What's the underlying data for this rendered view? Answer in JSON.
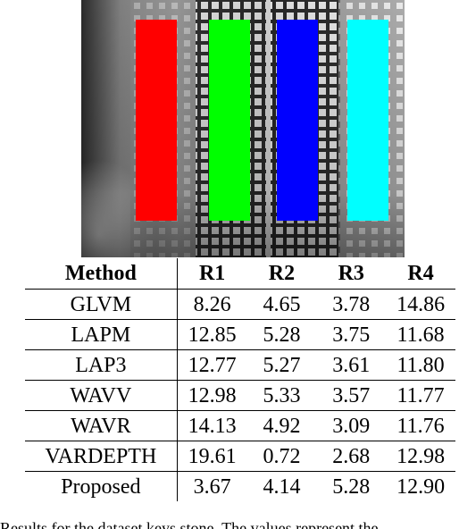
{
  "figure": {
    "regions": [
      {
        "name": "R1",
        "color": "#ff0000"
      },
      {
        "name": "R2",
        "color": "#00ff00"
      },
      {
        "name": "R3",
        "color": "#0000ff"
      },
      {
        "name": "R4",
        "color": "#00ffff"
      }
    ]
  },
  "table": {
    "headers": [
      "Method",
      "R1",
      "R2",
      "R3",
      "R4"
    ],
    "rows": [
      {
        "method": "GLVM",
        "values": [
          "8.26",
          "4.65",
          "3.78",
          "14.86"
        ]
      },
      {
        "method": "LAPM",
        "values": [
          "12.85",
          "5.28",
          "3.75",
          "11.68"
        ]
      },
      {
        "method": "LAP3",
        "values": [
          "12.77",
          "5.27",
          "3.61",
          "11.80"
        ]
      },
      {
        "method": "WAVV",
        "values": [
          "12.98",
          "5.33",
          "3.57",
          "11.77"
        ]
      },
      {
        "method": "WAVR",
        "values": [
          "14.13",
          "4.92",
          "3.09",
          "11.76"
        ]
      },
      {
        "method": "VARDEPTH",
        "values": [
          "19.61",
          "0.72",
          "2.68",
          "12.98"
        ]
      },
      {
        "method": "Proposed",
        "values": [
          "3.67",
          "4.14",
          "5.28",
          "12.90"
        ]
      }
    ]
  },
  "caption": "Results for the dataset keys stone. The values represent the"
}
